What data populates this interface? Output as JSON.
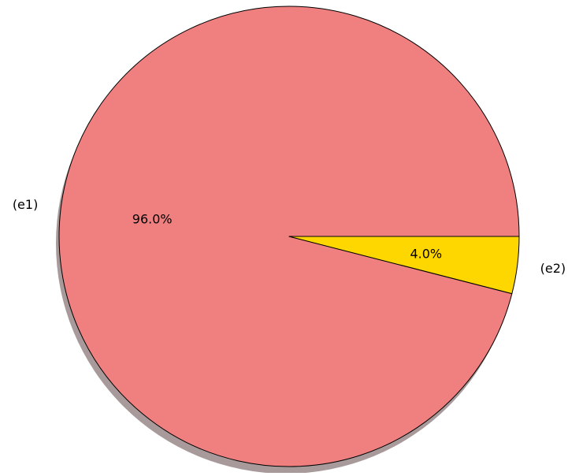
{
  "chart_data": {
    "type": "pie",
    "title": "",
    "slices": [
      {
        "label": "(e1)",
        "value": 96.0,
        "value_label": "96.0%",
        "color": "#F08080"
      },
      {
        "label": "(e2)",
        "value": 4.0,
        "value_label": "4.0%",
        "color": "#FFD700"
      }
    ],
    "start_angle_deg": 0,
    "direction": "counterclockwise",
    "shadow": true,
    "shadow_color": "#A89A9A",
    "edge_color": "#000000",
    "legend": "none"
  }
}
